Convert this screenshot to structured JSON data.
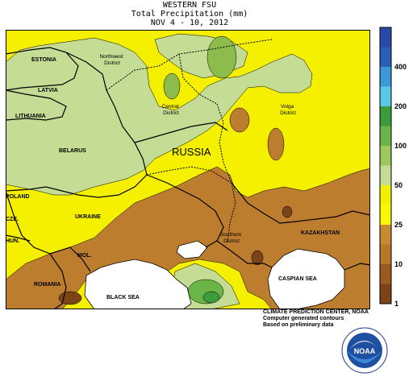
{
  "title": {
    "line1": "WESTERN FSU",
    "line2": "Total Precipitation (mm)",
    "line3": "NOV 4 - 10, 2012"
  },
  "map_labels": [
    {
      "id": "estonia",
      "text": "ESTONIA"
    },
    {
      "id": "latvia",
      "text": "LATVIA"
    },
    {
      "id": "lithuania",
      "text": "LITHUANIA"
    },
    {
      "id": "belarus",
      "text": "BELARUS"
    },
    {
      "id": "poland",
      "text": "POLAND"
    },
    {
      "id": "ukraine",
      "text": "UKRAINE"
    },
    {
      "id": "czech",
      "text": "CZE."
    },
    {
      "id": "hungary",
      "text": "HUN."
    },
    {
      "id": "moldova",
      "text": "MOL."
    },
    {
      "id": "romania",
      "text": "ROMANIA"
    },
    {
      "id": "black-sea",
      "text": "BLACK SEA"
    },
    {
      "id": "russia",
      "text": "RUSSIA"
    },
    {
      "id": "kazakhstan",
      "text": "KAZAKHSTAN"
    },
    {
      "id": "caspian-sea",
      "text": "CASPIAN SEA"
    },
    {
      "id": "northwest-district",
      "text": "Northwest District"
    },
    {
      "id": "central-district",
      "text": "Central District"
    },
    {
      "id": "volga-district",
      "text": "Volga District"
    },
    {
      "id": "southern-district",
      "text": "Southern District"
    }
  ],
  "legend": {
    "levels": [
      {
        "label": "",
        "color": "#2a4aa8"
      },
      {
        "label": "400",
        "color": "#2a5fb8"
      },
      {
        "label": "",
        "color": "#3a9ad8"
      },
      {
        "label": "200",
        "color": "#5ac8e8"
      },
      {
        "label": "",
        "color": "#3c9c3c"
      },
      {
        "label": "100",
        "color": "#6ab448"
      },
      {
        "label": "",
        "color": "#9cc85c"
      },
      {
        "label": "50",
        "color": "#c4dc94"
      },
      {
        "label": "",
        "color": "#f0f000"
      },
      {
        "label": "25",
        "color": "#f8f800"
      },
      {
        "label": "",
        "color": "#c88a30"
      },
      {
        "label": "10",
        "color": "#b87828"
      },
      {
        "label": "",
        "color": "#9a5a20"
      },
      {
        "label": "1",
        "color": "#7a4318"
      }
    ]
  },
  "colors": {
    "yellow": "#f5f000",
    "light_green": "#c4dc94",
    "mid_green": "#8cbc4c",
    "dark_green": "#5ea23a",
    "brown": "#bd7d2e",
    "dark_brown": "#7a4318",
    "sea": "#ffffff"
  },
  "credit": {
    "line1": "CLIMATE PREDICTION CENTER, NOAA",
    "line2": "Computer generated contours",
    "line3": "Based on preliminary data"
  },
  "logo": {
    "text": "NOAA"
  }
}
